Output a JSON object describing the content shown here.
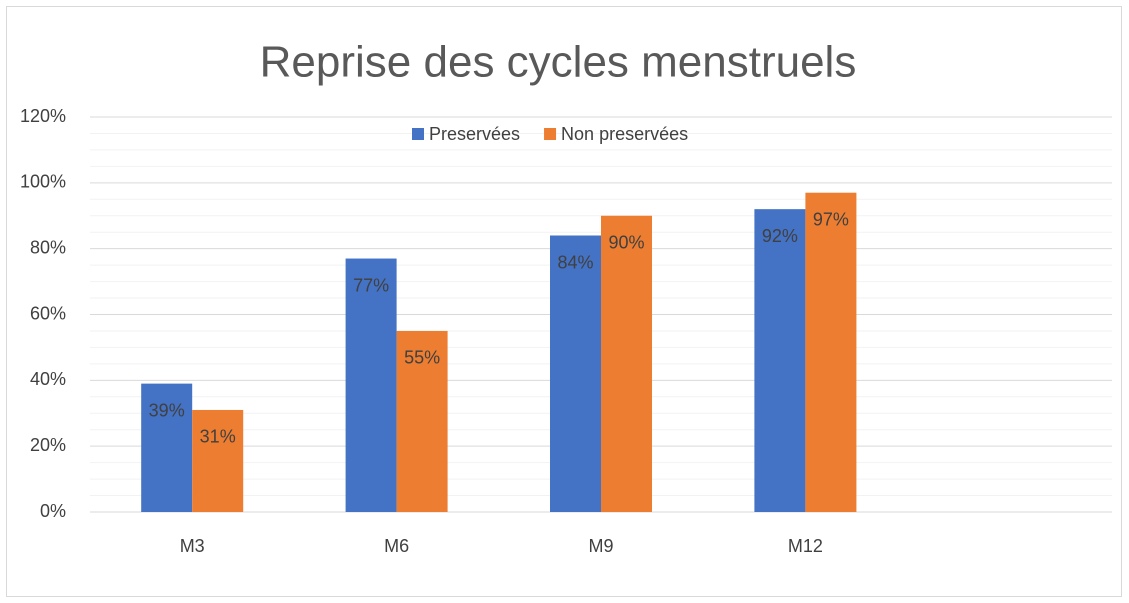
{
  "chart_data": {
    "type": "bar",
    "title": "Reprise des cycles menstruels",
    "categories": [
      "M3",
      "M6",
      "M9",
      "M12",
      null
    ],
    "series": [
      {
        "name": "Preservées",
        "color": "#4472c4",
        "values": [
          39,
          77,
          84,
          92,
          null
        ],
        "value_labels": [
          "39%",
          "77%",
          "84%",
          "92%",
          null
        ]
      },
      {
        "name": "Non preservées",
        "color": "#ed7d31",
        "values": [
          31,
          55,
          90,
          97,
          null
        ],
        "value_labels": [
          "31%",
          "55%",
          "90%",
          "97%",
          null
        ]
      }
    ],
    "ylim": [
      0,
      120
    ],
    "yticks": [
      {
        "value": 0,
        "label": "0%"
      },
      {
        "value": 20,
        "label": "20%"
      },
      {
        "value": 40,
        "label": "40%"
      },
      {
        "value": 60,
        "label": "60%"
      },
      {
        "value": 80,
        "label": "80%"
      },
      {
        "value": 100,
        "label": "100%"
      },
      {
        "value": 120,
        "label": "120%"
      }
    ],
    "minor_yticks": [
      5,
      10,
      15,
      25,
      30,
      35,
      45,
      50,
      55,
      65,
      70,
      75,
      85,
      90,
      95,
      105,
      110,
      115
    ],
    "grid": true,
    "legend": "top"
  }
}
